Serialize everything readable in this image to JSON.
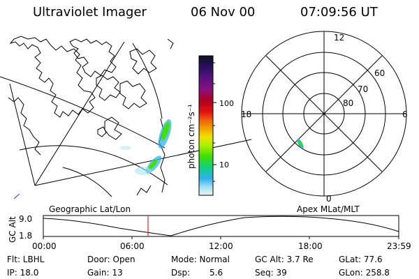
{
  "header": {
    "title": "Ultraviolet Imager",
    "date": "06 Nov 00",
    "time": "07:09:56 UT"
  },
  "colorbar": {
    "unit_label": "photon cm⁻²s⁻¹",
    "tick_labels": [
      "100",
      "10"
    ],
    "colors": [
      "#101020",
      "#2b1060",
      "#5a1280",
      "#8a1080",
      "#b00020",
      "#e01010",
      "#f06010",
      "#f0a000",
      "#f0e000",
      "#b0f000",
      "#40e000",
      "#10d080",
      "#30b0f0",
      "#a0e0f0",
      "#e8f6f8"
    ]
  },
  "polar": {
    "ring_labels": [
      "60",
      "70",
      "80"
    ],
    "mlt_labels": {
      "top": "12",
      "left": "18",
      "right": "6",
      "bottom": "0"
    }
  },
  "panel_labels": {
    "left": "Geographic Lat/Lon",
    "right": "Apex MLat/MLT"
  },
  "altitude_plot": {
    "axis_label": "GC Alt",
    "y_ticks": [
      "9.0",
      "1.8"
    ],
    "x_ticks": [
      "00:00",
      "06:00",
      "12:00",
      "18:00",
      "23:59"
    ],
    "current_marker_color": "#e00000"
  },
  "info": {
    "filter": "Flt: LBHL",
    "ip": "IP: 18.0",
    "door": "Door: Open",
    "gain": "Gain: 13",
    "mode": "Mode: Normal",
    "dsp_label": "Dsp:",
    "dsp_value": "5.6",
    "gc_alt": "GC Alt: 3.7 Re",
    "seq": "Seq: 39",
    "glat": "GLat: 77.6",
    "glon": "GLon: 258.8"
  }
}
